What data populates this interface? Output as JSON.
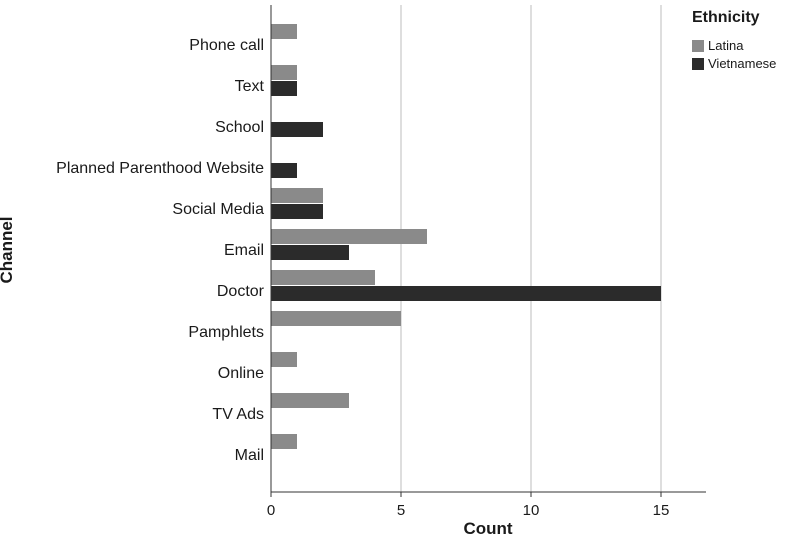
{
  "chart_data": {
    "type": "bar",
    "orientation": "horizontal",
    "categories": [
      "Phone call",
      "Text",
      "School",
      "Planned Parenthood Website",
      "Social Media",
      "Email",
      "Doctor",
      "Pamphlets",
      "Online",
      "TV Ads",
      "Mail"
    ],
    "series": [
      {
        "name": "Latina",
        "color": "#8a8a8a",
        "values": [
          1,
          1,
          0,
          0,
          2,
          6,
          4,
          5,
          1,
          3,
          1
        ]
      },
      {
        "name": "Vietnamese",
        "color": "#2b2b2b",
        "values": [
          0,
          1,
          2,
          1,
          2,
          3,
          15,
          0,
          0,
          0,
          0
        ]
      }
    ],
    "xlabel": "Count",
    "ylabel": "Channel",
    "xticks": [
      0,
      5,
      10,
      15
    ],
    "xlim": [
      0,
      16.6
    ],
    "grid": "vertical",
    "legend": {
      "title": "Ethnicity",
      "position": "top-right"
    }
  }
}
